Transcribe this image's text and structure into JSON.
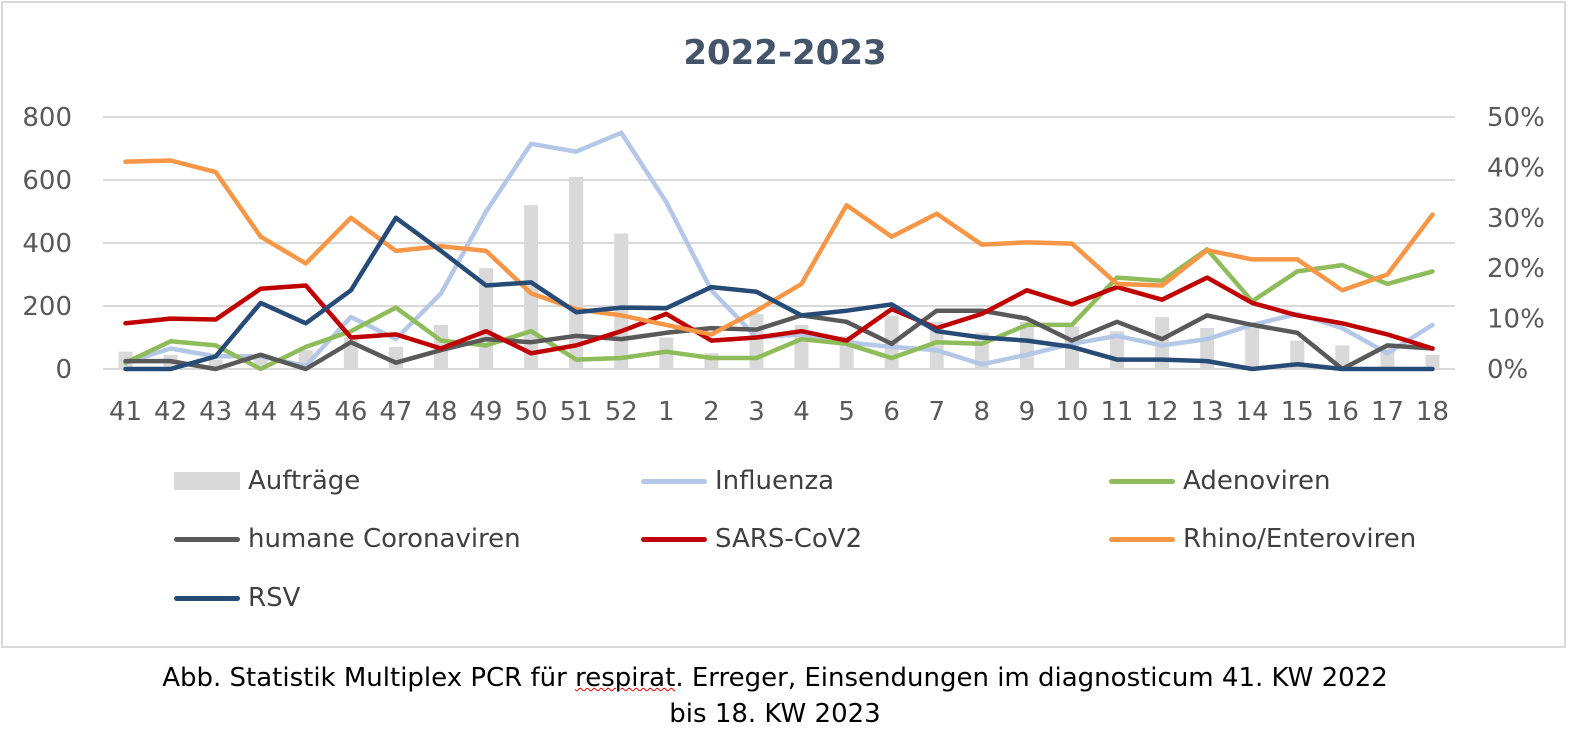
{
  "chart_data": {
    "type": "line",
    "title": "2022-2023",
    "categories": [
      "41",
      "42",
      "43",
      "44",
      "45",
      "46",
      "47",
      "48",
      "49",
      "50",
      "51",
      "52",
      "1",
      "2",
      "3",
      "4",
      "5",
      "6",
      "7",
      "8",
      "9",
      "10",
      "11",
      "12",
      "13",
      "14",
      "15",
      "16",
      "17",
      "18"
    ],
    "y_left": {
      "ticks": [
        "0",
        "200",
        "400",
        "600",
        "800"
      ],
      "lim": [
        0,
        800
      ]
    },
    "y_right": {
      "ticks": [
        "0%",
        "10%",
        "20%",
        "30%",
        "40%",
        "50%"
      ],
      "lim": [
        0,
        0.5
      ]
    },
    "grid": "horizontal",
    "legend_placement": "bottom",
    "bar_series": {
      "name": "Aufträge",
      "color": "#d9d9d9",
      "axis": "left",
      "values": [
        55,
        45,
        30,
        40,
        60,
        100,
        70,
        140,
        320,
        520,
        610,
        430,
        100,
        50,
        175,
        140,
        105,
        170,
        150,
        115,
        150,
        135,
        120,
        165,
        130,
        130,
        90,
        75,
        70,
        45
      ]
    },
    "series": [
      {
        "name": "Influenza",
        "color": "#b4c7e7",
        "axis": "left",
        "values": [
          20,
          65,
          40,
          40,
          10,
          165,
          95,
          240,
          500,
          715,
          690,
          750,
          530,
          250,
          100,
          110,
          85,
          70,
          60,
          15,
          45,
          80,
          105,
          75,
          95,
          140,
          175,
          130,
          50,
          140
        ]
      },
      {
        "name": "Adenoviren",
        "color": "#8fbc5a",
        "axis": "left",
        "values": [
          20,
          88,
          75,
          0,
          70,
          120,
          195,
          90,
          75,
          120,
          30,
          35,
          55,
          35,
          35,
          95,
          80,
          35,
          85,
          80,
          140,
          140,
          290,
          280,
          380,
          215,
          310,
          330,
          270,
          310
        ]
      },
      {
        "name": "humane Coronaviren",
        "color": "#595959",
        "axis": "left",
        "values": [
          25,
          25,
          0,
          45,
          0,
          85,
          20,
          60,
          95,
          85,
          105,
          95,
          115,
          130,
          125,
          170,
          150,
          80,
          185,
          185,
          160,
          90,
          150,
          95,
          170,
          140,
          115,
          0,
          75,
          65
        ]
      },
      {
        "name": "SARS-CoV2",
        "color": "#c00000",
        "axis": "left",
        "values": [
          145,
          160,
          157,
          255,
          265,
          100,
          110,
          65,
          120,
          50,
          75,
          120,
          175,
          90,
          100,
          120,
          90,
          190,
          130,
          175,
          250,
          205,
          260,
          220,
          290,
          210,
          170,
          145,
          110,
          65
        ]
      },
      {
        "name": "Rhino/Enteroviren",
        "color": "#f79646",
        "axis": "left",
        "values": [
          658,
          662,
          625,
          420,
          335,
          480,
          375,
          390,
          375,
          240,
          190,
          170,
          140,
          110,
          185,
          270,
          520,
          420,
          493,
          395,
          402,
          398,
          270,
          265,
          377,
          348,
          348,
          250,
          300,
          490
        ]
      },
      {
        "name": "RSV",
        "color": "#264b76",
        "axis": "left",
        "values": [
          0,
          0,
          40,
          210,
          145,
          250,
          480,
          375,
          265,
          275,
          180,
          195,
          193,
          260,
          245,
          170,
          185,
          205,
          120,
          100,
          90,
          70,
          30,
          30,
          25,
          0,
          15,
          0,
          0,
          0
        ]
      }
    ]
  },
  "caption": {
    "line1_before": "Abb. Statistik Multiplex PCR für ",
    "line1_squiggle": "respirat",
    "line1_after": ". Erreger, Einsendungen im diagnosticum 41. KW 2022",
    "line2": "bis 18. KW 2023"
  }
}
